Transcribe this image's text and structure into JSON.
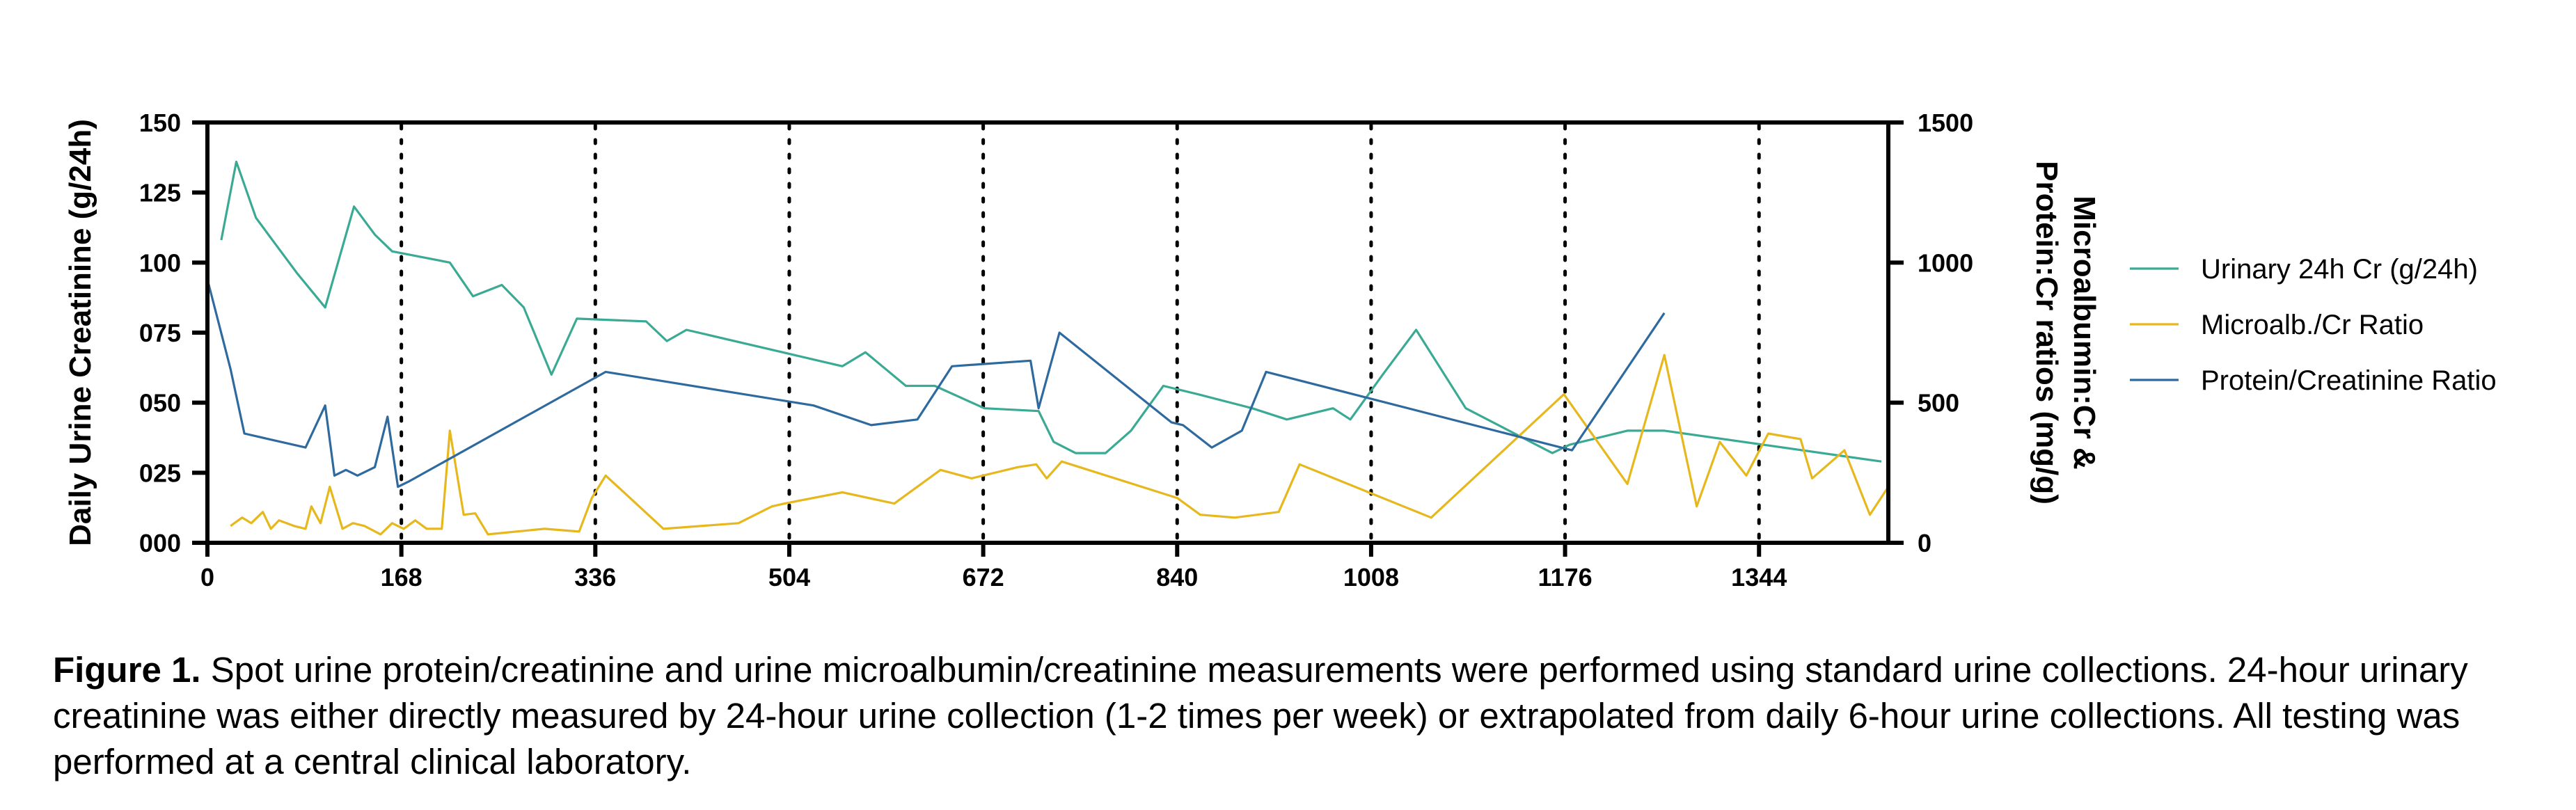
{
  "chart_data": {
    "type": "line",
    "title": "",
    "x": {
      "ticks": [
        0,
        168,
        336,
        504,
        672,
        840,
        1008,
        1176,
        1344
      ],
      "range": [
        0,
        1456
      ],
      "vertical_dotted_lines_at": [
        168,
        336,
        504,
        672,
        840,
        1008,
        1176,
        1344
      ]
    },
    "y_left": {
      "label": "Daily Urine Creatinine (g/24h)",
      "range": [
        0,
        0.15
      ],
      "ticks": [
        "000",
        "025",
        "050",
        "075",
        "100",
        "125",
        "150"
      ],
      "tick_values": [
        0,
        0.025,
        0.05,
        0.075,
        0.1,
        0.125,
        0.15
      ]
    },
    "y_right": {
      "label_lines": [
        "Microalbumin:Cr &",
        "Protein:Cr ratios (mg/g)"
      ],
      "range": [
        0,
        1500
      ],
      "ticks": [
        "0",
        "500",
        "1000",
        "1500"
      ],
      "tick_values": [
        0,
        500,
        1000,
        1500
      ]
    },
    "grid": false,
    "legend_position": "right",
    "series": [
      {
        "name": "Urinary 24h Cr (g/24h)",
        "axis": "left",
        "color": "#3aaa94",
        "points": [
          [
            12,
            0.108
          ],
          [
            25,
            0.136
          ],
          [
            42,
            0.116
          ],
          [
            60,
            0.106
          ],
          [
            78,
            0.096
          ],
          [
            102,
            0.084
          ],
          [
            127,
            0.12
          ],
          [
            145,
            0.11
          ],
          [
            160,
            0.104
          ],
          [
            210,
            0.1
          ],
          [
            230,
            0.088
          ],
          [
            255,
            0.092
          ],
          [
            274,
            0.084
          ],
          [
            298,
            0.06
          ],
          [
            320,
            0.08
          ],
          [
            380,
            0.079
          ],
          [
            398,
            0.072
          ],
          [
            415,
            0.076
          ],
          [
            550,
            0.063
          ],
          [
            570,
            0.068
          ],
          [
            605,
            0.056
          ],
          [
            630,
            0.056
          ],
          [
            673,
            0.048
          ],
          [
            720,
            0.047
          ],
          [
            733,
            0.036
          ],
          [
            752,
            0.032
          ],
          [
            778,
            0.032
          ],
          [
            800,
            0.04
          ],
          [
            828,
            0.056
          ],
          [
            858,
            0.053
          ],
          [
            905,
            0.048
          ],
          [
            935,
            0.044
          ],
          [
            975,
            0.048
          ],
          [
            990,
            0.044
          ],
          [
            1018,
            0.06
          ],
          [
            1047,
            0.076
          ],
          [
            1090,
            0.048
          ],
          [
            1165,
            0.032
          ],
          [
            1180,
            0.035
          ],
          [
            1230,
            0.04
          ],
          [
            1262,
            0.04
          ],
          [
            1450,
            0.029
          ]
        ]
      },
      {
        "name": "Microalb./Cr Ratio",
        "axis": "right",
        "color": "#e6b81d",
        "points": [
          [
            20,
            60
          ],
          [
            30,
            90
          ],
          [
            38,
            70
          ],
          [
            48,
            110
          ],
          [
            55,
            50
          ],
          [
            62,
            80
          ],
          [
            75,
            60
          ],
          [
            85,
            50
          ],
          [
            90,
            130
          ],
          [
            98,
            70
          ],
          [
            106,
            200
          ],
          [
            117,
            50
          ],
          [
            126,
            70
          ],
          [
            136,
            60
          ],
          [
            150,
            30
          ],
          [
            160,
            70
          ],
          [
            170,
            50
          ],
          [
            180,
            80
          ],
          [
            190,
            50
          ],
          [
            203,
            50
          ],
          [
            210,
            400
          ],
          [
            222,
            100
          ],
          [
            232,
            105
          ],
          [
            243,
            30
          ],
          [
            292,
            50
          ],
          [
            322,
            40
          ],
          [
            333,
            160
          ],
          [
            345,
            240
          ],
          [
            395,
            50
          ],
          [
            460,
            70
          ],
          [
            489,
            130
          ],
          [
            500,
            140
          ],
          [
            550,
            180
          ],
          [
            595,
            140
          ],
          [
            635,
            260
          ],
          [
            662,
            230
          ],
          [
            702,
            270
          ],
          [
            718,
            280
          ],
          [
            727,
            230
          ],
          [
            740,
            290
          ],
          [
            840,
            160
          ],
          [
            860,
            100
          ],
          [
            890,
            90
          ],
          [
            928,
            110
          ],
          [
            946,
            280
          ],
          [
            1060,
            90
          ],
          [
            1175,
            530
          ],
          [
            1230,
            210
          ],
          [
            1262,
            670
          ],
          [
            1290,
            130
          ],
          [
            1310,
            360
          ],
          [
            1333,
            240
          ],
          [
            1352,
            390
          ],
          [
            1380,
            370
          ],
          [
            1390,
            230
          ],
          [
            1418,
            330
          ],
          [
            1440,
            100
          ],
          [
            1456,
            200
          ]
        ]
      },
      {
        "name": "Protein/Creatinine Ratio",
        "axis": "right",
        "color": "#2f6a9f",
        "points": [
          [
            0,
            940
          ],
          [
            20,
            620
          ],
          [
            32,
            390
          ],
          [
            85,
            340
          ],
          [
            102,
            490
          ],
          [
            110,
            240
          ],
          [
            120,
            260
          ],
          [
            130,
            240
          ],
          [
            145,
            270
          ],
          [
            156,
            450
          ],
          [
            165,
            200
          ],
          [
            175,
            220
          ],
          [
            345,
            610
          ],
          [
            525,
            490
          ],
          [
            575,
            420
          ],
          [
            615,
            440
          ],
          [
            645,
            630
          ],
          [
            713,
            650
          ],
          [
            720,
            480
          ],
          [
            738,
            750
          ],
          [
            835,
            430
          ],
          [
            845,
            420
          ],
          [
            870,
            340
          ],
          [
            896,
            400
          ],
          [
            917,
            610
          ],
          [
            1182,
            330
          ],
          [
            1262,
            820
          ]
        ]
      }
    ]
  },
  "caption": {
    "label": "Figure 1.",
    "text": "Spot urine protein/creatinine and urine microalbumin/creatinine measurements were performed using standard urine collections. 24-hour urinary creatinine was either directly measured by 24-hour urine collection (1-2 times per week) or extrapolated from daily 6-hour urine collections. All testing was performed at a central clinical laboratory."
  }
}
